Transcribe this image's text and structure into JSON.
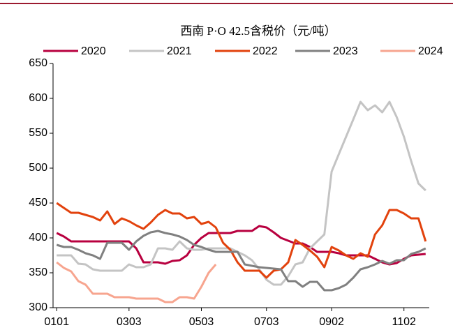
{
  "chart_data": {
    "type": "line",
    "title": "西南 P·O 42.5含税价（元/吨）",
    "categories": [
      "0101",
      null,
      null,
      null,
      null,
      null,
      null,
      null,
      null,
      null,
      "0303",
      null,
      null,
      null,
      null,
      null,
      null,
      null,
      null,
      null,
      "0503",
      null,
      null,
      null,
      null,
      null,
      null,
      null,
      null,
      "0703",
      null,
      null,
      null,
      null,
      null,
      null,
      null,
      null,
      "0902",
      null,
      null,
      null,
      null,
      null,
      null,
      null,
      null,
      null,
      "1102",
      null,
      null,
      null
    ],
    "series": [
      {
        "name": "2020",
        "color": "#b8003f",
        "values": [
          407,
          402,
          395,
          395,
          395,
          395,
          395,
          395,
          395,
          395,
          395,
          385,
          365,
          365,
          365,
          363,
          367,
          368,
          375,
          390,
          400,
          407,
          407,
          407,
          407,
          410,
          410,
          410,
          417,
          415,
          408,
          400,
          396,
          392,
          392,
          387,
          380,
          380,
          380,
          378,
          375,
          375,
          375,
          375,
          370,
          365,
          362,
          364,
          370,
          375,
          376,
          377
        ]
      },
      {
        "name": "2021",
        "color": "#c4c4c4",
        "values": [
          375,
          375,
          375,
          363,
          362,
          355,
          353,
          353,
          353,
          353,
          362,
          358,
          358,
          362,
          385,
          385,
          383,
          395,
          385,
          383,
          383,
          385,
          385,
          385,
          385,
          380,
          375,
          368,
          355,
          340,
          333,
          333,
          345,
          362,
          365,
          385,
          395,
          405,
          495,
          520,
          545,
          570,
          595,
          583,
          590,
          580,
          595,
          573,
          545,
          510,
          478,
          468
        ]
      },
      {
        "name": "2022",
        "color": "#e2420d",
        "values": [
          450,
          443,
          436,
          436,
          433,
          430,
          425,
          438,
          420,
          428,
          424,
          418,
          413,
          422,
          433,
          440,
          435,
          435,
          428,
          430,
          420,
          423,
          415,
          393,
          383,
          365,
          353,
          353,
          353,
          343,
          353,
          355,
          365,
          397,
          390,
          382,
          373,
          358,
          387,
          382,
          375,
          370,
          378,
          373,
          405,
          418,
          440,
          440,
          435,
          428,
          428,
          395
        ]
      },
      {
        "name": "2023",
        "color": "#808080",
        "values": [
          390,
          387,
          387,
          383,
          378,
          375,
          370,
          393,
          393,
          393,
          383,
          395,
          403,
          408,
          410,
          407,
          405,
          402,
          397,
          390,
          387,
          383,
          380,
          380,
          380,
          380,
          362,
          360,
          358,
          357,
          356,
          355,
          338,
          338,
          330,
          337,
          337,
          325,
          325,
          328,
          333,
          343,
          355,
          358,
          362,
          367,
          363,
          368,
          368,
          377,
          380,
          385
        ]
      },
      {
        "name": "2024",
        "color": "#f7a58f",
        "values": [
          365,
          357,
          352,
          338,
          333,
          320,
          320,
          320,
          315,
          315,
          315,
          313,
          313,
          313,
          313,
          308,
          308,
          315,
          315,
          313,
          330,
          350,
          362,
          null,
          null,
          null,
          null,
          null,
          null,
          null,
          null,
          null,
          null,
          null,
          null,
          null,
          null,
          null,
          null,
          null,
          null,
          null,
          null,
          null,
          null,
          null,
          null,
          null,
          null,
          null,
          null,
          null
        ]
      }
    ],
    "ylim": [
      300,
      650
    ],
    "yticks": [
      300,
      350,
      400,
      450,
      500,
      550,
      600,
      650
    ],
    "grid": false,
    "legend": "top"
  }
}
